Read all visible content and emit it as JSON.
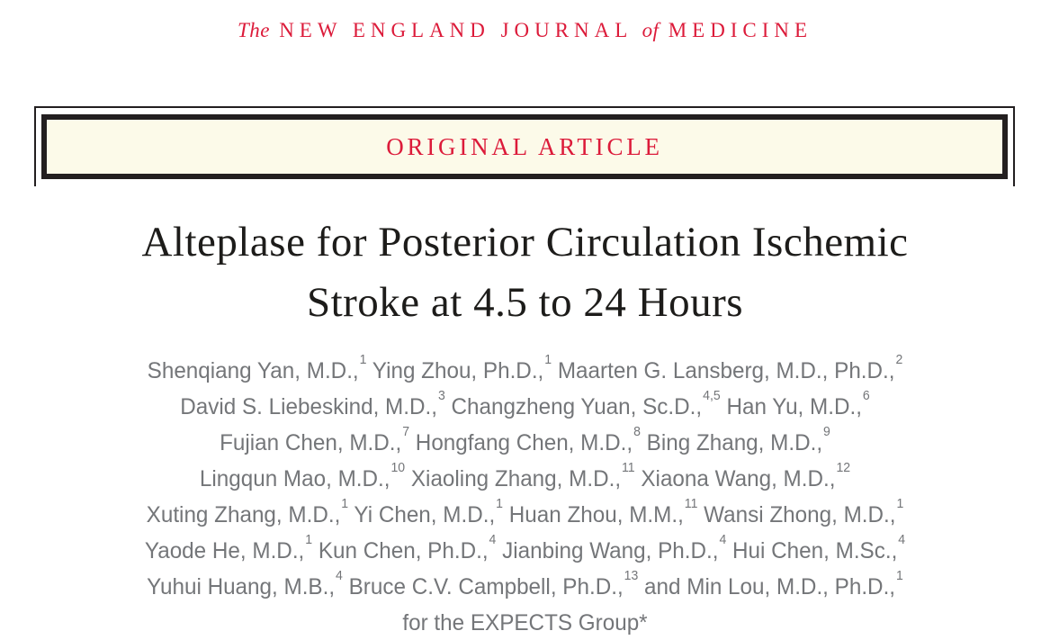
{
  "colors": {
    "brand_red": "#dc1b3a",
    "banner_background": "#fcfae9",
    "border_black": "#231f20",
    "title_text": "#1d1c1a",
    "author_text": "#747679"
  },
  "masthead": {
    "segments": [
      {
        "text": "The",
        "italic": true
      },
      {
        "text": "NEW ENGLAND JOURNAL",
        "italic": false
      },
      {
        "text": "of",
        "italic": true
      },
      {
        "text": "MEDICINE",
        "italic": false
      }
    ]
  },
  "banner": {
    "label": "ORIGINAL ARTICLE"
  },
  "article": {
    "title_line1": "Alteplase for Posterior Circulation Ischemic",
    "title_line2": "Stroke at 4.5 to 24 Hours",
    "authors": {
      "lines": [
        {
          "segments": [
            {
              "t": "Shenqiang Yan, M.D.,",
              "s": "1"
            },
            {
              "t": " Ying Zhou, Ph.D.,",
              "s": "1"
            },
            {
              "t": " Maarten G. Lansberg, M.D., Ph.D.,",
              "s": "2"
            }
          ]
        },
        {
          "segments": [
            {
              "t": "David S. Liebeskind, M.D.,",
              "s": "3"
            },
            {
              "t": " Changzheng Yuan, Sc.D.,",
              "s": "4,5"
            },
            {
              "t": " Han Yu, M.D.,",
              "s": "6"
            }
          ]
        },
        {
          "segments": [
            {
              "t": "Fujian Chen, M.D.,",
              "s": "7"
            },
            {
              "t": " Hongfang Chen, M.D.,",
              "s": "8"
            },
            {
              "t": " Bing Zhang, M.D.,",
              "s": "9"
            }
          ]
        },
        {
          "segments": [
            {
              "t": "Lingqun Mao, M.D.,",
              "s": "10"
            },
            {
              "t": " Xiaoling Zhang, M.D.,",
              "s": "11"
            },
            {
              "t": " Xiaona Wang, M.D.,",
              "s": "12"
            }
          ]
        },
        {
          "segments": [
            {
              "t": "Xuting Zhang, M.D.,",
              "s": "1"
            },
            {
              "t": " Yi Chen, M.D.,",
              "s": "1"
            },
            {
              "t": " Huan Zhou, M.M.,",
              "s": "11"
            },
            {
              "t": " Wansi Zhong, M.D.,",
              "s": "1"
            }
          ]
        },
        {
          "segments": [
            {
              "t": "Yaode He, M.D.,",
              "s": "1"
            },
            {
              "t": " Kun Chen, Ph.D.,",
              "s": "4"
            },
            {
              "t": " Jianbing Wang, Ph.D.,",
              "s": "4"
            },
            {
              "t": " Hui Chen, M.Sc.,",
              "s": "4"
            }
          ]
        },
        {
          "segments": [
            {
              "t": "Yuhui Huang, M.B.,",
              "s": "4"
            },
            {
              "t": " Bruce C.V. Campbell, Ph.D.,",
              "s": "13"
            },
            {
              "t": " and Min Lou, M.D., Ph.D.,",
              "s": "1"
            }
          ]
        },
        {
          "segments": [
            {
              "t": "for the EXPECTS Group*",
              "s": ""
            }
          ]
        }
      ]
    }
  }
}
